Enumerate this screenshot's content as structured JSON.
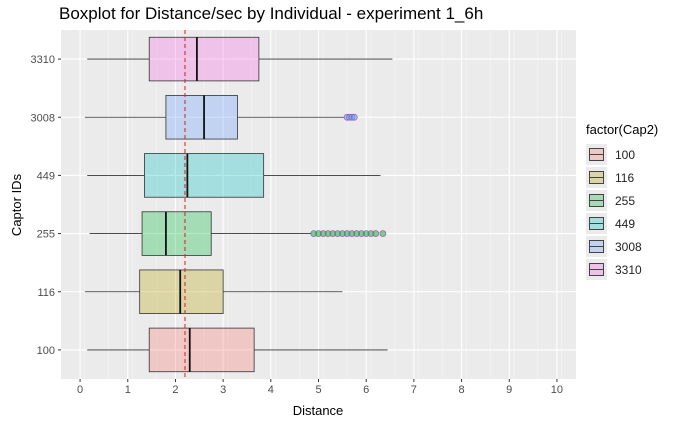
{
  "title": "Boxplot for Distance/sec by Individual - experiment 1_6h",
  "chart_data": {
    "type": "boxplot",
    "orientation": "horizontal",
    "title": "Boxplot for Distance/sec by Individual - experiment 1_6h",
    "xlabel": "Distance",
    "ylabel": "Captor IDs",
    "xlim": [
      -0.4,
      10.4
    ],
    "x_ticks": [
      "0",
      "1",
      "2",
      "3",
      "4",
      "5",
      "6",
      "7",
      "8",
      "9",
      "10"
    ],
    "grid": true,
    "legend_position": "right",
    "legend_title": "factor(Cap2)",
    "reference_line": {
      "x": 2.2,
      "color": "#e41a1c",
      "style": "dashed"
    },
    "categories": [
      "100",
      "116",
      "255",
      "449",
      "3008",
      "3310"
    ],
    "series": [
      {
        "name": "100",
        "color": "#f8766d",
        "whisker_low": 0.15,
        "q1": 1.45,
        "median": 2.3,
        "q3": 3.65,
        "whisker_high": 6.45,
        "outliers": []
      },
      {
        "name": "116",
        "color": "#b79f00",
        "whisker_low": 0.1,
        "q1": 1.25,
        "median": 2.1,
        "q3": 3.0,
        "whisker_high": 5.5,
        "outliers": []
      },
      {
        "name": "255",
        "color": "#00ba38",
        "whisker_low": 0.2,
        "q1": 1.3,
        "median": 1.8,
        "q3": 2.75,
        "whisker_high": 4.85,
        "outliers": [
          4.9,
          5.0,
          5.1,
          5.2,
          5.3,
          5.4,
          5.5,
          5.6,
          5.7,
          5.8,
          5.9,
          6.0,
          6.1,
          6.2,
          6.35
        ]
      },
      {
        "name": "449",
        "color": "#00bfc4",
        "whisker_low": 0.15,
        "q1": 1.35,
        "median": 2.25,
        "q3": 3.85,
        "whisker_high": 6.3,
        "outliers": []
      },
      {
        "name": "3008",
        "color": "#619cff",
        "whisker_low": 0.1,
        "q1": 1.8,
        "median": 2.6,
        "q3": 3.3,
        "whisker_high": 5.55,
        "outliers": [
          5.6,
          5.65,
          5.7,
          5.75
        ]
      },
      {
        "name": "3310",
        "color": "#f564e3",
        "whisker_low": 0.15,
        "q1": 1.45,
        "median": 2.45,
        "q3": 3.75,
        "whisker_high": 6.55,
        "outliers": []
      }
    ]
  },
  "legend": {
    "title": "factor(Cap2)",
    "items": [
      {
        "label": "100",
        "color": "#f8766d"
      },
      {
        "label": "116",
        "color": "#b79f00"
      },
      {
        "label": "255",
        "color": "#00ba38"
      },
      {
        "label": "449",
        "color": "#00bfc4"
      },
      {
        "label": "3008",
        "color": "#619cff"
      },
      {
        "label": "3310",
        "color": "#f564e3"
      }
    ]
  }
}
